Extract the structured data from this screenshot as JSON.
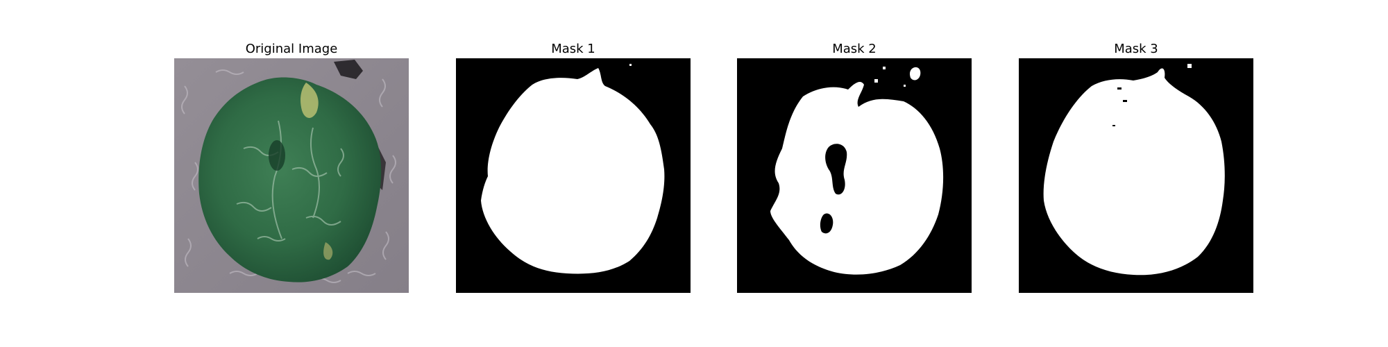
{
  "figure": {
    "panels": [
      {
        "title": "Original Image",
        "content": "leaf-photo"
      },
      {
        "title": "Mask 1",
        "content": "binary-mask"
      },
      {
        "title": "Mask 2",
        "content": "binary-mask"
      },
      {
        "title": "Mask 3",
        "content": "binary-mask"
      }
    ]
  },
  "colors": {
    "background": "#ffffff",
    "mask_background": "#000000",
    "mask_foreground": "#ffffff",
    "photo_background": "#8f8990",
    "leaf_green": "#2f6b45",
    "leaf_highlight": "#b8bf72"
  }
}
